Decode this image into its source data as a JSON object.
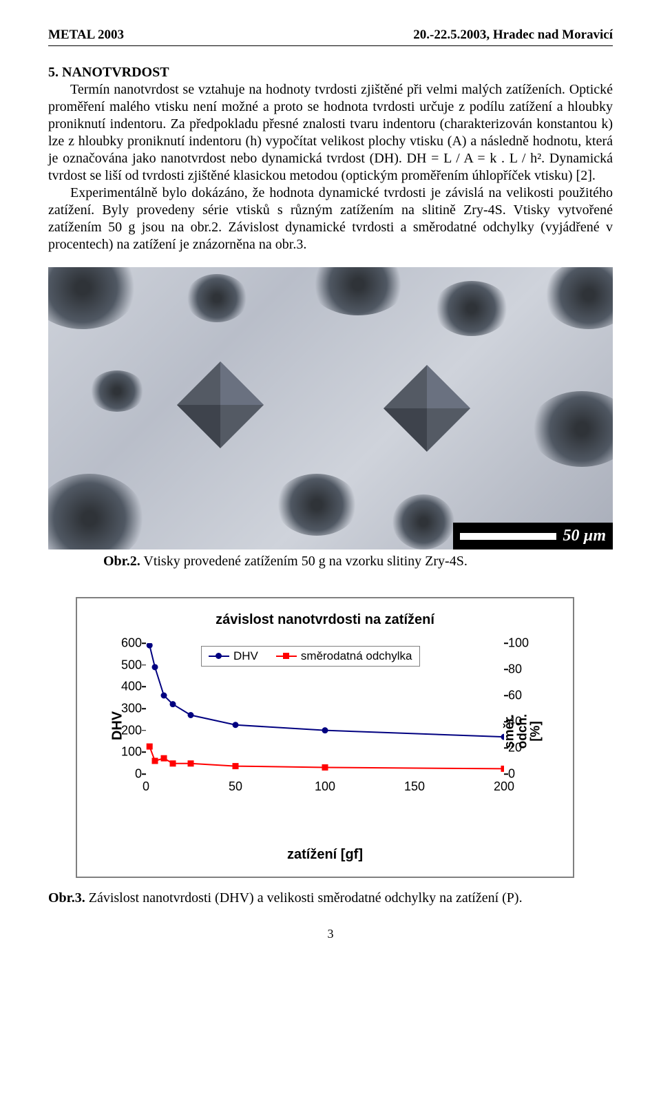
{
  "header": {
    "left": "METAL 2003",
    "right": "20.-22.5.2003, Hradec nad Moravicí"
  },
  "section": {
    "number": "5.",
    "title": "NANOTVRDOST",
    "para1": "Termín nanotvrdost se vztahuje na hodnoty tvrdosti zjištěné při velmi malých zatíženích. Optické proměření malého vtisku není možné a proto se hodnota tvrdosti určuje z podílu zatížení a hloubky proniknutí indentoru. Za předpokladu přesné znalosti tvaru indentoru (charakterizován konstantou k) lze z hloubky proniknutí indentoru (h) vypočítat velikost plochy vtisku (A) a následně hodnotu, která je označována jako nanotvrdost nebo dynamická tvrdost (DH). DH = L / A = k . L / h². Dynamická tvrdost se liší od tvrdosti zjištěné klasickou metodou (optickým proměřením úhlopříček vtisku) [2].",
    "para2": "Experimentálně bylo dokázáno, že hodnota dynamické tvrdosti je závislá na velikosti použitého zatížení. Byly provedeny série vtisků  s různým zatížením na slitině Zry-4S. Vtisky vytvořené zatížením 50 g jsou na obr.2. Závislost dynamické tvrdosti a směrodatné odchylky (vyjádřené v procentech) na zatížení je znázorněna na obr.3."
  },
  "micrograph": {
    "scale_text": "50 µm",
    "scale_bg": "#000000",
    "scale_fg": "#ffffff"
  },
  "caption2_bold": "Obr.2.",
  "caption2_rest": " Vtisky provedené zatížením 50 g na vzorku slitiny Zry-4S.",
  "chart": {
    "type": "line-dual-axis",
    "title": "závislost nanotvrdosti na zatížení",
    "x_label": "zatížení [gf]",
    "y1_label": "DHV",
    "y2_label": "směr. odch. [%]",
    "x_ticks": [
      0,
      50,
      100,
      150,
      200
    ],
    "xlim": [
      0,
      200
    ],
    "y1_ticks": [
      0,
      100,
      200,
      300,
      400,
      500,
      600
    ],
    "y1_lim": [
      0,
      600
    ],
    "y2_ticks": [
      0,
      20,
      40,
      60,
      80,
      100
    ],
    "y2_lim": [
      0,
      100
    ],
    "series": [
      {
        "name": "DHV",
        "color": "#000080",
        "line_width": 2,
        "marker": "circle",
        "marker_size": 9,
        "axis": "y1",
        "x": [
          2,
          5,
          10,
          15,
          25,
          50,
          100,
          200
        ],
        "y": [
          590,
          490,
          360,
          320,
          270,
          225,
          200,
          170
        ]
      },
      {
        "name": "směrodatná odchylka",
        "color": "#ff0000",
        "line_width": 2,
        "marker": "square",
        "marker_size": 9,
        "axis": "y2",
        "x": [
          2,
          5,
          10,
          15,
          25,
          50,
          100,
          200
        ],
        "y": [
          21,
          10,
          12,
          8,
          8,
          6,
          5,
          4
        ]
      }
    ],
    "legend": {
      "position": "top",
      "border_color": "#7f7f7f",
      "bg": "#ffffff",
      "items": [
        "DHV",
        "směrodatná odchylka"
      ]
    },
    "plot_border_color": "#7f7f7f",
    "background_color": "#ffffff",
    "tick_fontsize": 18,
    "label_fontsize": 20,
    "title_fontsize": 20
  },
  "caption3_bold": "Obr.3.",
  "caption3_rest": " Závislost nanotvrdosti (DHV) a velikosti směrodatné odchylky na zatížení (P).",
  "page_number": "3"
}
